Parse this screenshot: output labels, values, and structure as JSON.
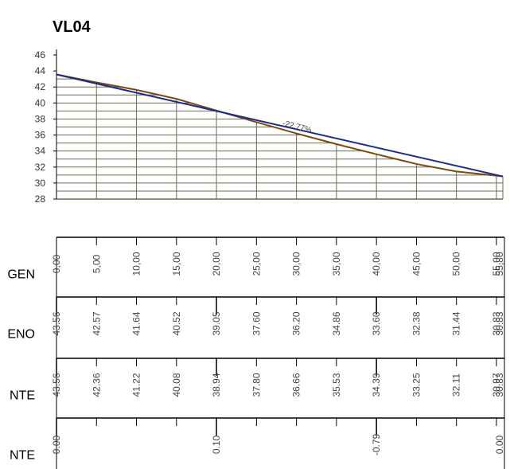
{
  "chart_data": {
    "type": "line",
    "title": "VL04",
    "ylim": [
      28,
      46
    ],
    "y_ticks": [
      28,
      30,
      32,
      34,
      36,
      38,
      40,
      42,
      44,
      46
    ],
    "x": [
      0,
      5,
      10,
      15,
      20,
      25,
      30,
      35,
      40,
      45,
      50,
      55
    ],
    "x_max": 55.8,
    "series": [
      {
        "color": "#7a4a14",
        "x": [
          0,
          5,
          10,
          15,
          20,
          25,
          30,
          35,
          40,
          45,
          50,
          55.8
        ],
        "values": [
          43.56,
          42.57,
          41.64,
          40.52,
          39.05,
          37.6,
          36.2,
          34.86,
          33.6,
          32.38,
          31.44,
          30.83
        ]
      },
      {
        "color": "#1a2c8c",
        "x": [
          0,
          55.8
        ],
        "values": [
          43.56,
          30.83
        ]
      }
    ],
    "slope_annotation": "-22,77%",
    "grid": true,
    "table": {
      "rows": [
        {
          "label": "GEN",
          "values": [
            "0,00",
            "5,00",
            "10,00",
            "15,00",
            "20,00",
            "25,00",
            "30,00",
            "35,00",
            "40,00",
            "45,00",
            "50,00",
            "55,00"
          ],
          "end_value": "55,80"
        },
        {
          "label": "ENO",
          "values": [
            "43.56",
            "42.57",
            "41.64",
            "40.52",
            "39.05",
            "37.60",
            "36.20",
            "34.86",
            "33.60",
            "32.38",
            "31.44",
            "30.83"
          ],
          "end_value": "30.83"
        },
        {
          "label": "NTE",
          "values": [
            "43.56",
            "42.36",
            "41.22",
            "40.08",
            "38.94",
            "37.80",
            "36.66",
            "35.53",
            "34.39",
            "33.25",
            "32.11",
            "30.97"
          ],
          "end_value": "30.83"
        },
        {
          "label": "NTE",
          "values": [
            "0.00",
            "",
            "",
            "",
            "0.10",
            "",
            "",
            "",
            "-0.79",
            "",
            "",
            ""
          ],
          "end_value": "0.00"
        }
      ]
    },
    "colors": {
      "grid": "#6b6b55",
      "axis": "#000000",
      "terrain": "#7a4a14",
      "grade": "#1a2c8c"
    }
  }
}
